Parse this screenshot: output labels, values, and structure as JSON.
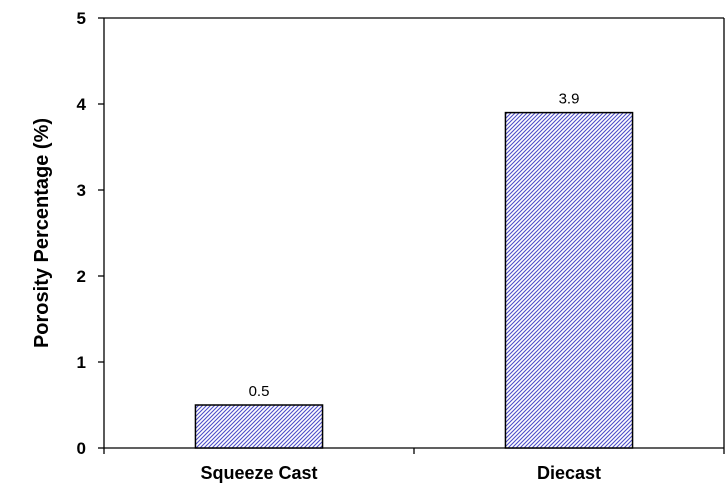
{
  "chart_data": {
    "type": "bar",
    "title": "",
    "xlabel": "",
    "ylabel": "Porosity Percentage (%)",
    "categories": [
      "Squeeze Cast",
      "Diecast"
    ],
    "values": [
      0.5,
      3.9
    ],
    "data_labels": [
      "0.5",
      "3.9"
    ],
    "ylim": [
      0,
      5
    ],
    "yticks": [
      "0",
      "1",
      "2",
      "3",
      "4",
      "5"
    ],
    "grid": false,
    "legend": "none",
    "bar_fill": "#ffffff",
    "bar_hatch_color": "#4d4dc8",
    "bar_stroke": "#000000"
  }
}
